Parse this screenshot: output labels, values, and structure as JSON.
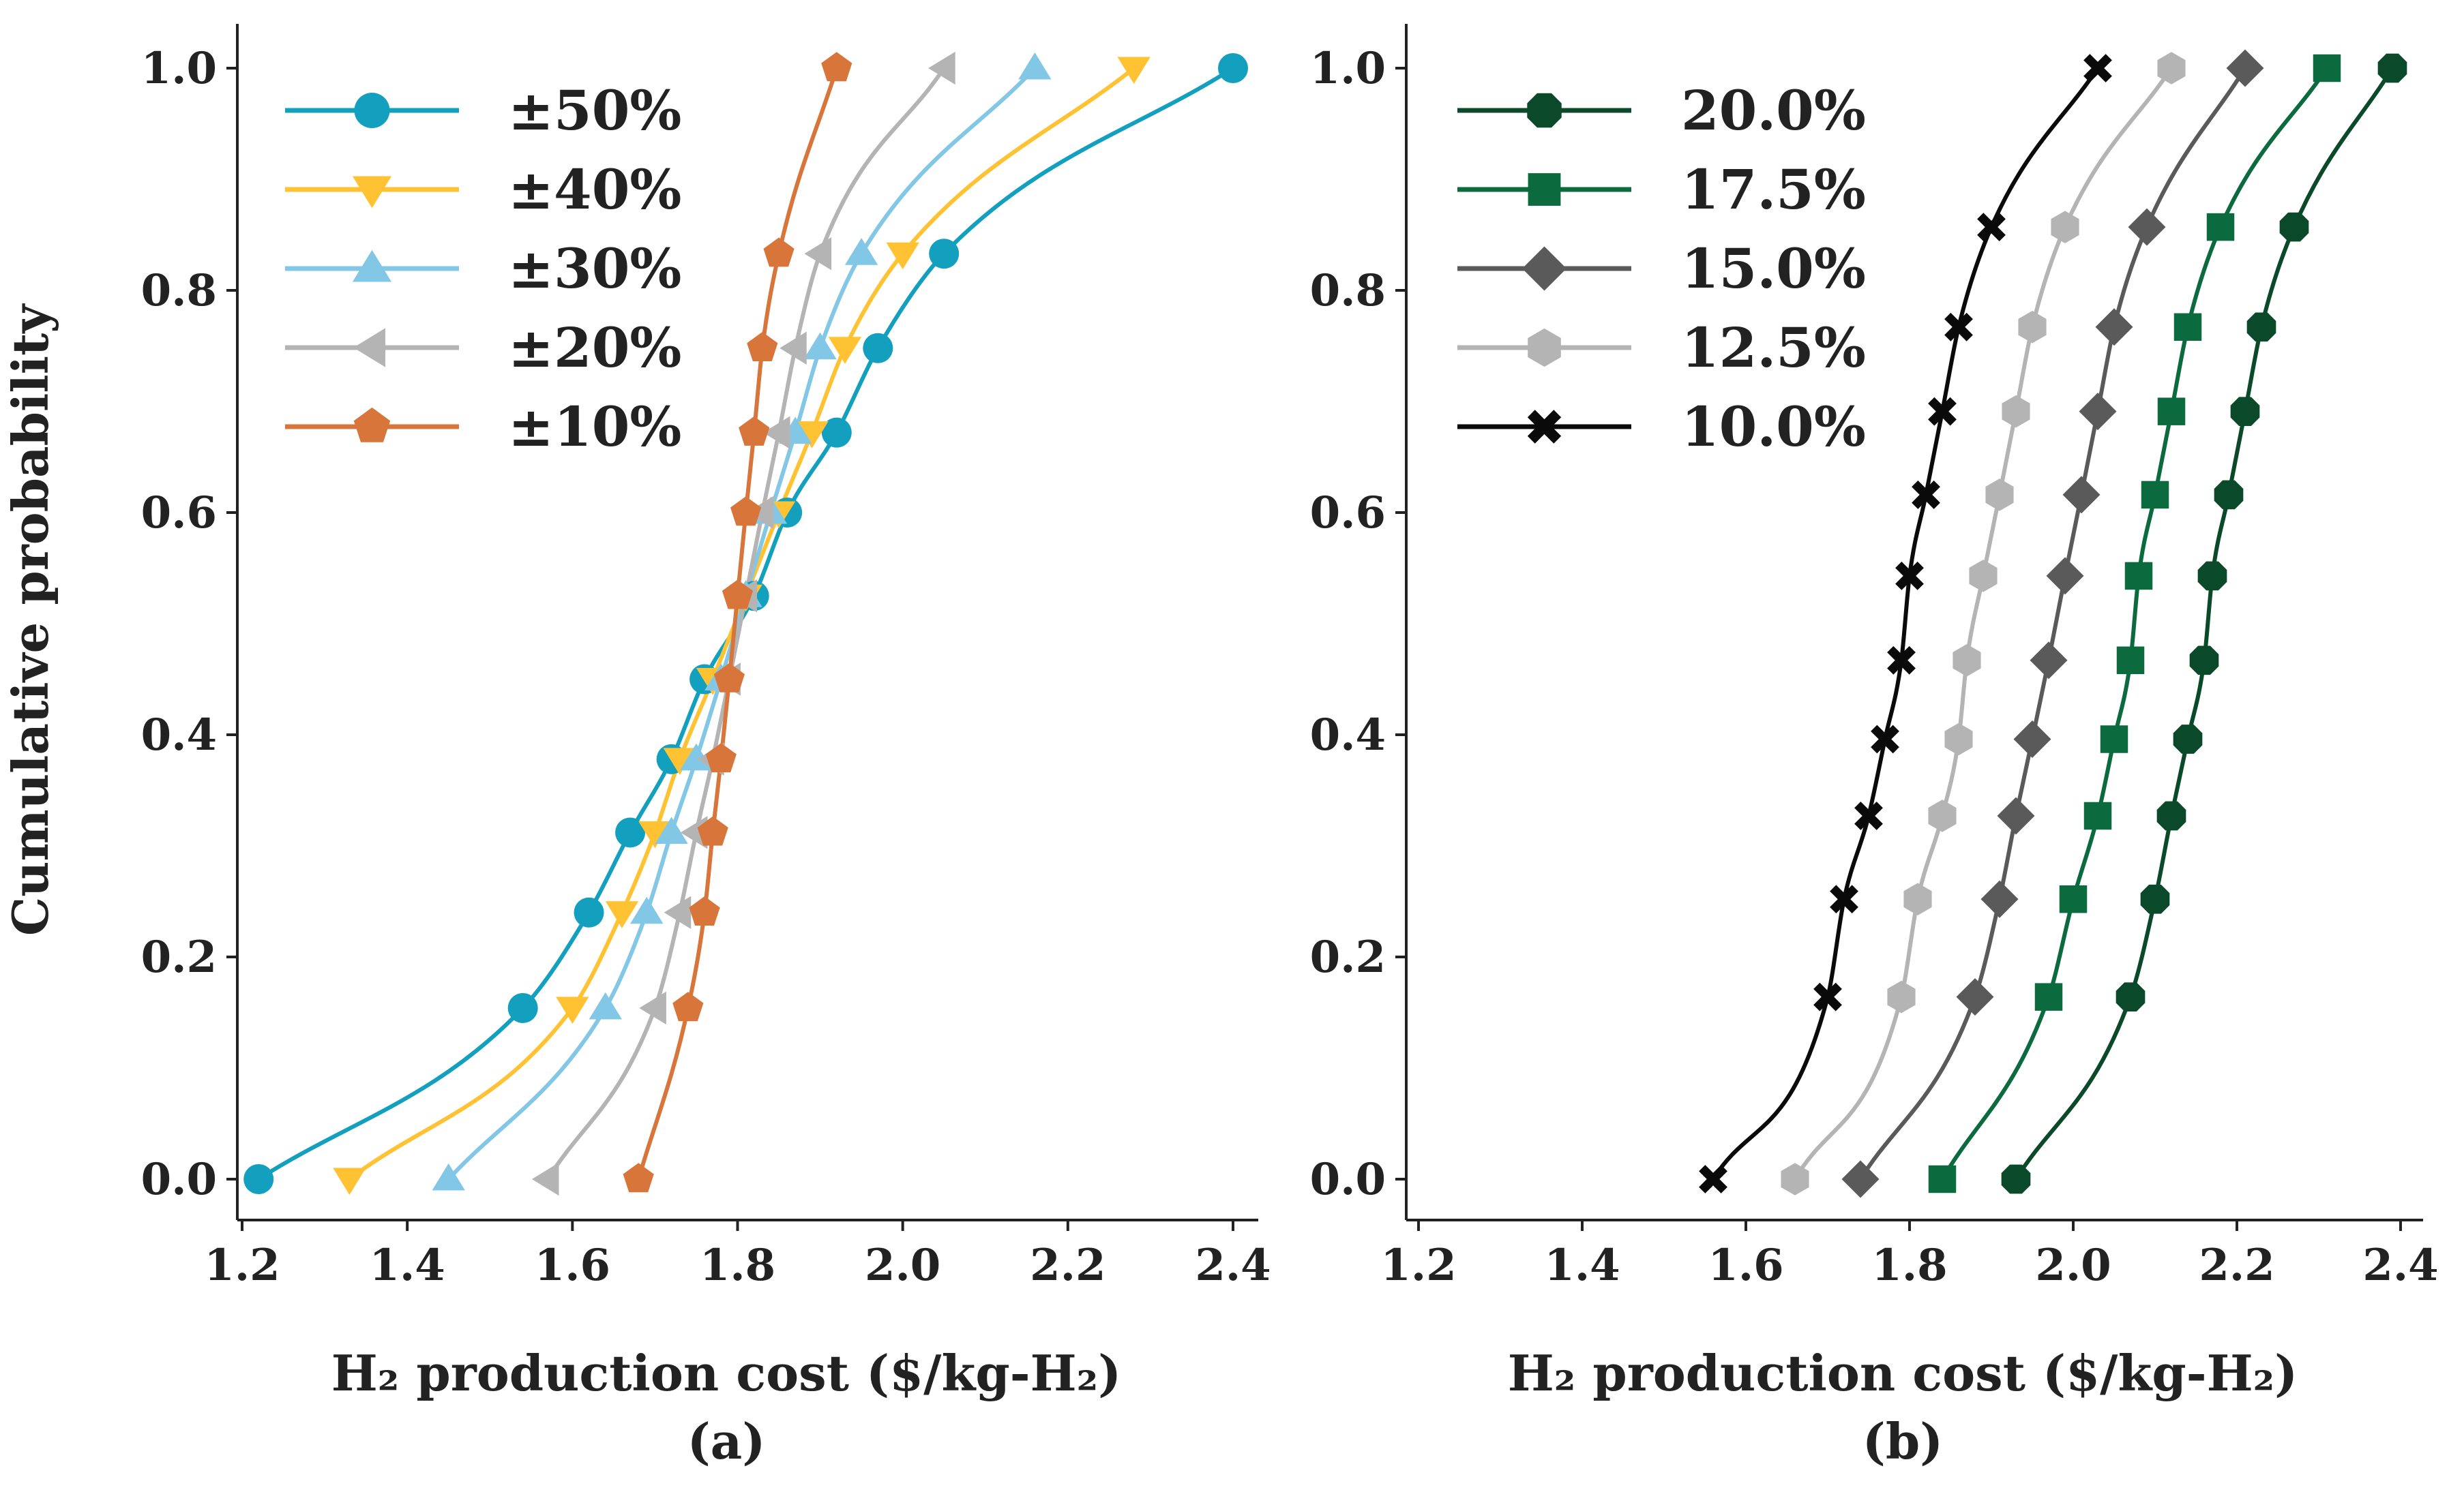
{
  "figure": {
    "ylabel": "Cumulative probability"
  },
  "chart_data": [
    {
      "type": "line",
      "panel_label": "(a)",
      "xlabel": "H₂ production cost ($/kg-H₂)",
      "ylabel": "Cumulative probability",
      "xlim": [
        1.2,
        2.4
      ],
      "ylim": [
        0.0,
        1.0
      ],
      "xticks": [
        "1.2",
        "1.4",
        "1.6",
        "1.8",
        "2.0",
        "2.2",
        "2.4"
      ],
      "yticks": [
        "0.0",
        "0.2",
        "0.4",
        "0.6",
        "0.8",
        "1.0"
      ],
      "grid": false,
      "legend_position": "top-left",
      "series": [
        {
          "name": "±50%",
          "color": "#12a0be",
          "marker": "circle",
          "points": [
            [
              1.22,
              0.0
            ],
            [
              1.54,
              0.154
            ],
            [
              1.62,
              0.24
            ],
            [
              1.67,
              0.312
            ],
            [
              1.72,
              0.378
            ],
            [
              1.76,
              0.45
            ],
            [
              1.82,
              0.525
            ],
            [
              1.86,
              0.6
            ],
            [
              1.92,
              0.672
            ],
            [
              1.97,
              0.748
            ],
            [
              2.05,
              0.833
            ],
            [
              2.4,
              1.0
            ]
          ]
        },
        {
          "name": "±40%",
          "color": "#ffc233",
          "marker": "triangle-down",
          "points": [
            [
              1.33,
              0.0
            ],
            [
              1.6,
              0.154
            ],
            [
              1.66,
              0.24
            ],
            [
              1.7,
              0.312
            ],
            [
              1.73,
              0.378
            ],
            [
              1.77,
              0.45
            ],
            [
              1.81,
              0.525
            ],
            [
              1.85,
              0.6
            ],
            [
              1.89,
              0.672
            ],
            [
              1.93,
              0.748
            ],
            [
              2.0,
              0.833
            ],
            [
              2.28,
              1.0
            ]
          ]
        },
        {
          "name": "±30%",
          "color": "#82c8e6",
          "marker": "triangle-up",
          "points": [
            [
              1.45,
              0.0
            ],
            [
              1.64,
              0.154
            ],
            [
              1.69,
              0.24
            ],
            [
              1.72,
              0.312
            ],
            [
              1.75,
              0.378
            ],
            [
              1.78,
              0.45
            ],
            [
              1.81,
              0.525
            ],
            [
              1.84,
              0.6
            ],
            [
              1.87,
              0.672
            ],
            [
              1.9,
              0.748
            ],
            [
              1.95,
              0.833
            ],
            [
              2.16,
              1.0
            ]
          ]
        },
        {
          "name": "±20%",
          "color": "#b4b4b4",
          "marker": "triangle-left",
          "points": [
            [
              1.57,
              0.0
            ],
            [
              1.7,
              0.154
            ],
            [
              1.73,
              0.24
            ],
            [
              1.75,
              0.312
            ],
            [
              1.77,
              0.378
            ],
            [
              1.79,
              0.45
            ],
            [
              1.81,
              0.525
            ],
            [
              1.83,
              0.6
            ],
            [
              1.85,
              0.672
            ],
            [
              1.87,
              0.748
            ],
            [
              1.9,
              0.833
            ],
            [
              2.05,
              1.0
            ]
          ]
        },
        {
          "name": "±10%",
          "color": "#d8753a",
          "marker": "pentagon",
          "points": [
            [
              1.68,
              0.0
            ],
            [
              1.74,
              0.154
            ],
            [
              1.76,
              0.24
            ],
            [
              1.77,
              0.312
            ],
            [
              1.78,
              0.378
            ],
            [
              1.79,
              0.45
            ],
            [
              1.8,
              0.525
            ],
            [
              1.81,
              0.6
            ],
            [
              1.82,
              0.672
            ],
            [
              1.83,
              0.748
            ],
            [
              1.85,
              0.833
            ],
            [
              1.92,
              1.0
            ]
          ]
        }
      ]
    },
    {
      "type": "line",
      "panel_label": "(b)",
      "xlabel": "H₂ production cost ($/kg-H₂)",
      "xlim": [
        1.2,
        2.4
      ],
      "ylim": [
        0.0,
        1.0
      ],
      "xticks": [
        "1.2",
        "1.4",
        "1.6",
        "1.8",
        "2.0",
        "2.2",
        "2.4"
      ],
      "yticks": [
        "0.0",
        "0.2",
        "0.4",
        "0.6",
        "0.8",
        "1.0"
      ],
      "grid": false,
      "legend_position": "top-left",
      "series": [
        {
          "name": "20.0%",
          "color": "#0a4a2a",
          "marker": "octagon",
          "points": [
            [
              1.93,
              0.0
            ],
            [
              2.07,
              0.164
            ],
            [
              2.1,
              0.252
            ],
            [
              2.12,
              0.327
            ],
            [
              2.14,
              0.396
            ],
            [
              2.16,
              0.467
            ],
            [
              2.17,
              0.543
            ],
            [
              2.19,
              0.616
            ],
            [
              2.21,
              0.691
            ],
            [
              2.23,
              0.767
            ],
            [
              2.27,
              0.857
            ],
            [
              2.39,
              1.0
            ]
          ]
        },
        {
          "name": "17.5%",
          "color": "#0b6a3e",
          "marker": "square",
          "points": [
            [
              1.84,
              0.0
            ],
            [
              1.97,
              0.164
            ],
            [
              2.0,
              0.252
            ],
            [
              2.03,
              0.327
            ],
            [
              2.05,
              0.396
            ],
            [
              2.07,
              0.467
            ],
            [
              2.08,
              0.543
            ],
            [
              2.1,
              0.616
            ],
            [
              2.12,
              0.691
            ],
            [
              2.14,
              0.767
            ],
            [
              2.18,
              0.857
            ],
            [
              2.31,
              1.0
            ]
          ]
        },
        {
          "name": "15.0%",
          "color": "#5a5a5a",
          "marker": "diamond",
          "points": [
            [
              1.74,
              0.0
            ],
            [
              1.88,
              0.164
            ],
            [
              1.91,
              0.252
            ],
            [
              1.93,
              0.327
            ],
            [
              1.95,
              0.396
            ],
            [
              1.97,
              0.467
            ],
            [
              1.99,
              0.543
            ],
            [
              2.01,
              0.616
            ],
            [
              2.03,
              0.691
            ],
            [
              2.05,
              0.767
            ],
            [
              2.09,
              0.857
            ],
            [
              2.21,
              1.0
            ]
          ]
        },
        {
          "name": "12.5%",
          "color": "#b4b4b4",
          "marker": "hexagon",
          "points": [
            [
              1.66,
              0.0
            ],
            [
              1.79,
              0.164
            ],
            [
              1.81,
              0.252
            ],
            [
              1.84,
              0.327
            ],
            [
              1.86,
              0.396
            ],
            [
              1.87,
              0.467
            ],
            [
              1.89,
              0.543
            ],
            [
              1.91,
              0.616
            ],
            [
              1.93,
              0.691
            ],
            [
              1.95,
              0.767
            ],
            [
              1.99,
              0.857
            ],
            [
              2.12,
              1.0
            ]
          ]
        },
        {
          "name": "10.0%",
          "color": "#0a0a0a",
          "marker": "x",
          "points": [
            [
              1.56,
              0.0
            ],
            [
              1.7,
              0.164
            ],
            [
              1.72,
              0.252
            ],
            [
              1.75,
              0.327
            ],
            [
              1.77,
              0.396
            ],
            [
              1.79,
              0.467
            ],
            [
              1.8,
              0.543
            ],
            [
              1.82,
              0.616
            ],
            [
              1.84,
              0.691
            ],
            [
              1.86,
              0.767
            ],
            [
              1.9,
              0.857
            ],
            [
              2.03,
              1.0
            ]
          ]
        }
      ]
    }
  ]
}
